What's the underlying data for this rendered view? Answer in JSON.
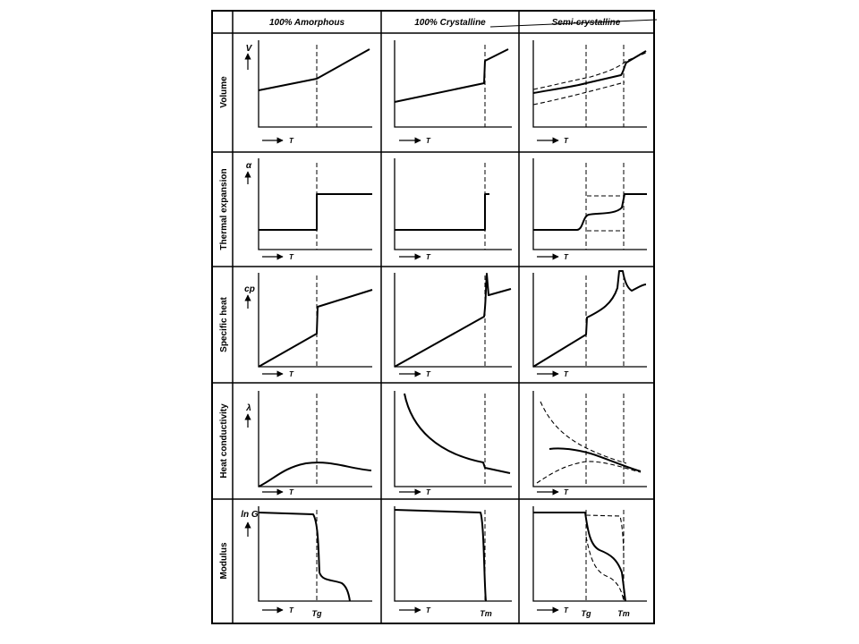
{
  "columns": [
    {
      "key": "amorphous",
      "label": "100% Amorphous"
    },
    {
      "key": "crystalline",
      "label": "100% Crystalline"
    },
    {
      "key": "semi",
      "label": "Semi-crystalline"
    }
  ],
  "rows": [
    {
      "key": "volume",
      "label": "Volume",
      "ylabel": "V"
    },
    {
      "key": "expansion",
      "label": "Thermal expansion",
      "ylabel": "α"
    },
    {
      "key": "specific_heat",
      "label": "Specific heat",
      "ylabel": "cp"
    },
    {
      "key": "conductivity",
      "label": "Heat conductivity",
      "ylabel": "λ"
    },
    {
      "key": "modulus",
      "label": "Modulus",
      "ylabel": "ln G"
    }
  ],
  "axis_x_label": "T",
  "transitions": {
    "glass": "Tg",
    "melt": "Tm"
  },
  "colors": {
    "ink": "#000000",
    "paper": "#ffffff"
  }
}
